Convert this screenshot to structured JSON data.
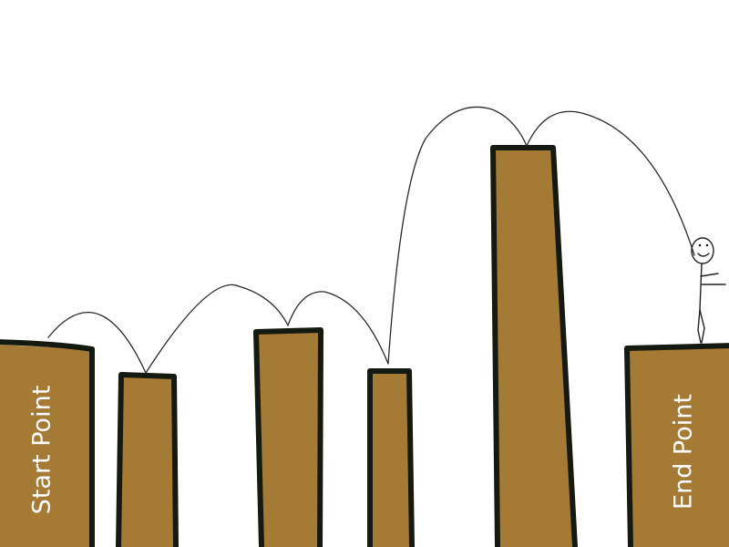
{
  "game": {
    "start_label": "Start Point",
    "end_label": "End Point"
  },
  "colors": {
    "pillar_fill": "#a57a35",
    "pillar_outline": "#141a10",
    "background": "#ffffff",
    "label_text": "#ffffff"
  },
  "icons": {
    "character": "stick-figure-icon"
  }
}
